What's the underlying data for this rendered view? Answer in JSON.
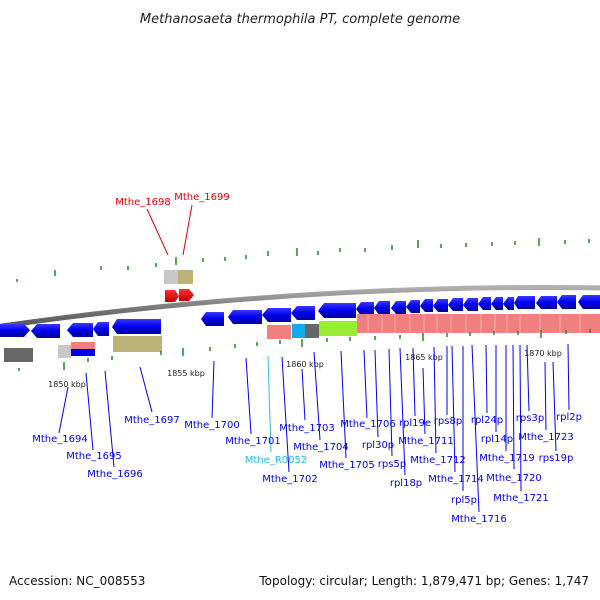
{
  "title": "Methanosaeta thermophila PT, complete genome",
  "accession": "Accession: NC_008553",
  "topology": "Topology: circular; Length: 1,879,471 bp; Genes: 1,747",
  "colors": {
    "gene": "#0000ee",
    "highlight_gene": "#dd0000",
    "rna_gene": "#22bbdd",
    "backbone": "#888888",
    "tick": "#228822",
    "pink_block": "#f08080",
    "lime_block": "#99ee33",
    "cyan_block": "#11aaee",
    "olive_block": "#bbb277",
    "grey_block": "#666666",
    "light_grey_block": "#c8c8c8"
  },
  "scale_labels": [
    "1850 kbp",
    "1855 kbp",
    "1860 kbp",
    "1865 kbp",
    "1870 kbp"
  ],
  "gene_labels": [
    {
      "text": "Mthe_1698",
      "kind": "highlight"
    },
    {
      "text": "Mthe_1699",
      "kind": "highlight"
    },
    {
      "text": "Mthe_1694",
      "kind": "gene"
    },
    {
      "text": "Mthe_1695",
      "kind": "gene"
    },
    {
      "text": "Mthe_1696",
      "kind": "gene"
    },
    {
      "text": "Mthe_1697",
      "kind": "gene"
    },
    {
      "text": "Mthe_1700",
      "kind": "gene"
    },
    {
      "text": "Mthe_1701",
      "kind": "gene"
    },
    {
      "text": "Mthe_R0052",
      "kind": "rna"
    },
    {
      "text": "Mthe_1702",
      "kind": "gene"
    },
    {
      "text": "Mthe_1703",
      "kind": "gene"
    },
    {
      "text": "Mthe_1704",
      "kind": "gene"
    },
    {
      "text": "Mthe_1705",
      "kind": "gene"
    },
    {
      "text": "Mthe_1706",
      "kind": "gene"
    },
    {
      "text": "rpl30p",
      "kind": "gene"
    },
    {
      "text": "rps5p",
      "kind": "gene"
    },
    {
      "text": "rpl18p",
      "kind": "gene"
    },
    {
      "text": "rpl19e",
      "kind": "gene"
    },
    {
      "text": "Mthe_1711",
      "kind": "gene"
    },
    {
      "text": "Mthe_1712",
      "kind": "gene"
    },
    {
      "text": "rps8p",
      "kind": "gene"
    },
    {
      "text": "Mthe_1714",
      "kind": "gene"
    },
    {
      "text": "rpl5p",
      "kind": "gene"
    },
    {
      "text": "Mthe_1716",
      "kind": "gene"
    },
    {
      "text": "rpl24p",
      "kind": "gene"
    },
    {
      "text": "rpl14p",
      "kind": "gene"
    },
    {
      "text": "Mthe_1719",
      "kind": "gene"
    },
    {
      "text": "Mthe_1720",
      "kind": "gene"
    },
    {
      "text": "Mthe_1721",
      "kind": "gene"
    },
    {
      "text": "rps3p",
      "kind": "gene"
    },
    {
      "text": "Mthe_1723",
      "kind": "gene"
    },
    {
      "text": "rps19p",
      "kind": "gene"
    },
    {
      "text": "rpl2p",
      "kind": "gene"
    }
  ]
}
